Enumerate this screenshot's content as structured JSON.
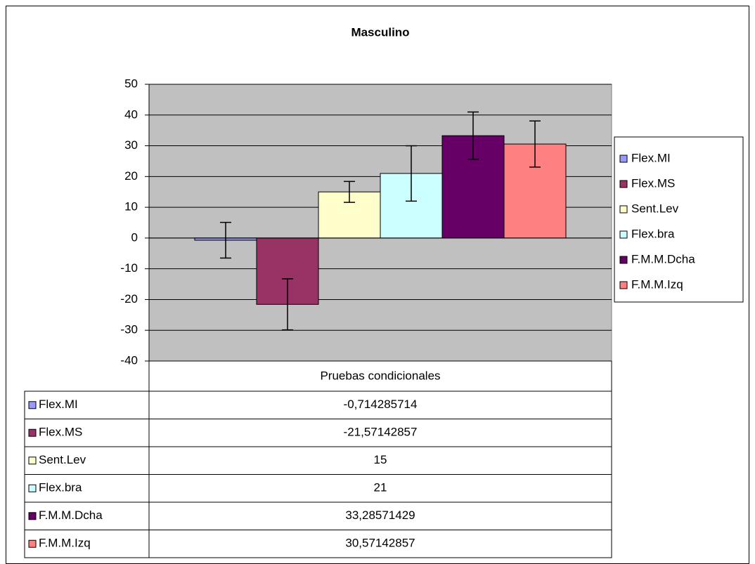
{
  "chart_data": {
    "type": "bar",
    "title": "Masculino",
    "categories": [
      "Pruebas condicionales"
    ],
    "ylim": [
      -40,
      50
    ],
    "yticks": [
      -40,
      -30,
      -20,
      -10,
      0,
      10,
      20,
      30,
      40,
      50
    ],
    "grid": true,
    "series": [
      {
        "name": "Flex.MI",
        "color": "#9999ff",
        "values": [
          -0.714285714
        ],
        "value_labels": [
          "-0,714285714"
        ],
        "errors": [
          5.8
        ]
      },
      {
        "name": "Flex.MS",
        "color": "#993366",
        "values": [
          -21.57142857
        ],
        "value_labels": [
          "-21,57142857"
        ],
        "errors": [
          8.3
        ]
      },
      {
        "name": "Sent.Lev",
        "color": "#ffffcc",
        "values": [
          15
        ],
        "value_labels": [
          "15"
        ],
        "errors": [
          3.4
        ]
      },
      {
        "name": "Flex.bra",
        "color": "#ccffff",
        "values": [
          21
        ],
        "value_labels": [
          "21"
        ],
        "errors": [
          9
        ]
      },
      {
        "name": "F.M.M.Dcha",
        "color": "#660066",
        "values": [
          33.28571429
        ],
        "value_labels": [
          "33,28571429"
        ],
        "errors": [
          7.7
        ]
      },
      {
        "name": "F.M.M.Izq",
        "color": "#ff8080",
        "values": [
          30.57142857
        ],
        "value_labels": [
          "30,57142857"
        ],
        "errors": [
          7.5
        ]
      }
    ]
  }
}
